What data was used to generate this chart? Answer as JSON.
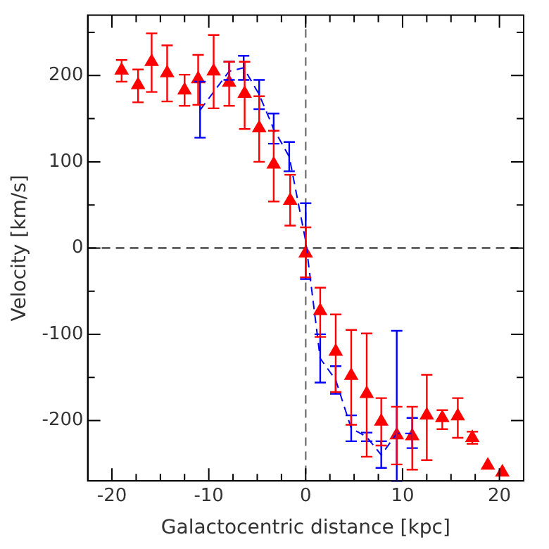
{
  "chart_data": {
    "type": "scatter",
    "xlabel": "Galactocentric distance [kpc]",
    "ylabel": "Velocity [km/s]",
    "xlim": [
      -22.5,
      22.5
    ],
    "ylim": [
      -270,
      270
    ],
    "xticks": [
      -20,
      {
        "value": -17.5,
        "label": null
      },
      {
        "value": -15,
        "label": null
      },
      {
        "value": -12.5,
        "label": null
      },
      -10,
      {
        "value": -7.5,
        "label": null
      },
      {
        "value": -5,
        "label": null
      },
      {
        "value": -2.5,
        "label": null
      },
      0,
      {
        "value": 2.5,
        "label": null
      },
      {
        "value": 5,
        "label": null
      },
      {
        "value": 7.5,
        "label": null
      },
      10,
      {
        "value": 12.5,
        "label": null
      },
      {
        "value": 15,
        "label": null
      },
      {
        "value": 17.5,
        "label": null
      },
      20
    ],
    "yticks": [
      -200,
      {
        "value": -150,
        "label": null
      },
      -100,
      {
        "value": -50,
        "label": null
      },
      0,
      {
        "value": 50,
        "label": null
      },
      100,
      {
        "value": 150,
        "label": null
      },
      200,
      {
        "value": 250,
        "label": null
      }
    ],
    "grid": false,
    "legend": false,
    "ref_lines": [
      {
        "axis": "x",
        "value": 0,
        "color": "#777777",
        "line_style": "dashed"
      },
      {
        "axis": "y",
        "value": 0,
        "color": "#333333",
        "line_style": "dashed"
      }
    ],
    "series": [
      {
        "type": "line",
        "color": "#0000ff",
        "marker": "none",
        "line_style": "dashed",
        "x": [
          -10.9,
          -7.9,
          -6.4,
          -4.8,
          -3.3,
          -1.7,
          0,
          1.5,
          3.1,
          4.7,
          6.3,
          7.8,
          9.4,
          11
        ],
        "values": [
          160,
          205,
          209,
          178,
          138,
          106,
          8,
          -128,
          -153,
          -209,
          -219,
          -240,
          -215,
          -215
        ],
        "errors": [
          [
            128,
            193
          ],
          [
            195,
            216
          ],
          [
            195,
            223
          ],
          [
            161,
            195
          ],
          [
            121,
            156
          ],
          [
            89,
            123
          ],
          [
            -36,
            52
          ],
          [
            -156,
            -100
          ],
          [
            -169,
            -137
          ],
          [
            -224,
            -194
          ],
          [
            -224,
            -214
          ],
          [
            -255,
            -224
          ],
          [
            -270,
            -96
          ],
          [
            -232,
            -197
          ]
        ]
      },
      {
        "color": "#ff0000",
        "marker": "triangle",
        "x": [
          -19,
          -17.3,
          -15.9,
          -14.3,
          -12.5,
          -11.1,
          -9.5,
          -7.9,
          -6.3,
          -4.8,
          -3.3,
          -1.6,
          0,
          1.5,
          3.1,
          4.7,
          6.3,
          7.8,
          9.4,
          11,
          12.5,
          14.1,
          15.7,
          17.2,
          18.8,
          20.3
        ],
        "values": [
          206,
          189,
          216,
          203,
          183,
          196,
          205,
          192,
          179,
          139,
          97,
          55,
          -6,
          -73,
          -120,
          -148,
          -169,
          -201,
          -217,
          -218,
          -194,
          -197,
          -195,
          -220,
          -252,
          -260
        ],
        "errors": [
          [
            193,
            218
          ],
          [
            169,
            207
          ],
          [
            181,
            249
          ],
          [
            170,
            235
          ],
          [
            165,
            201
          ],
          [
            166,
            224
          ],
          [
            162,
            247
          ],
          [
            165,
            216
          ],
          [
            138,
            216
          ],
          [
            100,
            176
          ],
          [
            54,
            136
          ],
          [
            26,
            85
          ],
          [
            -34,
            24
          ],
          [
            -103,
            -46
          ],
          [
            -167,
            -77
          ],
          [
            -205,
            -95
          ],
          [
            -242,
            -99
          ],
          [
            -229,
            -174
          ],
          [
            -251,
            -184
          ],
          [
            -257,
            -184
          ],
          [
            -246,
            -147
          ],
          [
            -210,
            -188
          ],
          [
            -220,
            -174
          ],
          [
            -227,
            -213
          ],
          null,
          null
        ]
      }
    ]
  }
}
